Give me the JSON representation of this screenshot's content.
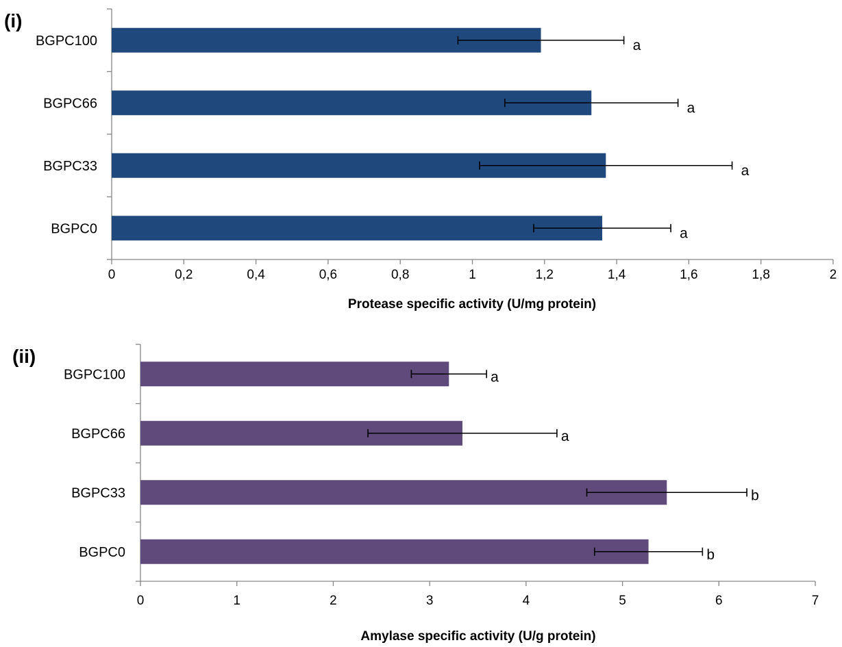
{
  "chart_data": [
    {
      "type": "bar",
      "orientation": "horizontal",
      "panel_label": "(i)",
      "categories": [
        "BGPC100",
        "BGPC66",
        "BGPC33",
        "BGPC0"
      ],
      "values": [
        1.19,
        1.33,
        1.37,
        1.36
      ],
      "errors": [
        0.23,
        0.24,
        0.35,
        0.19
      ],
      "significance": [
        "a",
        "a",
        "a",
        "a"
      ],
      "xlabel": "Protease specific activity (U/mg protein)",
      "ylabel": "",
      "xlim": [
        0,
        2
      ],
      "xticks": [
        0,
        0.2,
        0.4,
        0.6,
        0.8,
        1,
        1.2,
        1.4,
        1.6,
        1.8,
        2
      ],
      "xtick_labels": [
        "0",
        "0,2",
        "0,4",
        "0,6",
        "0,8",
        "1",
        "1,2",
        "1,4",
        "1,6",
        "1,8",
        "2"
      ],
      "bar_color": "#1f497d",
      "grid": false
    },
    {
      "type": "bar",
      "orientation": "horizontal",
      "panel_label": "(ii)",
      "categories": [
        "BGPC100",
        "BGPC66",
        "BGPC33",
        "BGPC0"
      ],
      "values": [
        3.2,
        3.34,
        5.46,
        5.27
      ],
      "errors": [
        0.39,
        0.98,
        0.83,
        0.56
      ],
      "significance": [
        "a",
        "a",
        "b",
        "b"
      ],
      "xlabel": "Amylase specific activity (U/g protein)",
      "ylabel": "",
      "xlim": [
        0,
        7
      ],
      "xticks": [
        0,
        1,
        2,
        3,
        4,
        5,
        6,
        7
      ],
      "xtick_labels": [
        "0",
        "1",
        "2",
        "3",
        "4",
        "5",
        "6",
        "7"
      ],
      "bar_color": "#604a7b",
      "grid": false
    }
  ]
}
